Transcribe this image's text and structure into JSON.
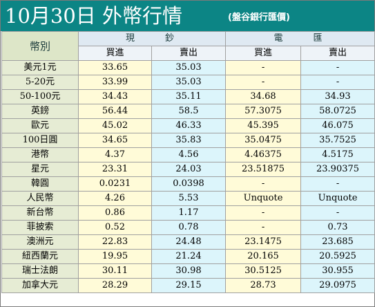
{
  "header": {
    "title": "10月30日 外幣行情",
    "subtitle": "(盤谷銀行匯價)"
  },
  "table": {
    "currency_header": "幣別",
    "groups": [
      {
        "label": "現　　鈔"
      },
      {
        "label": "電　　匯"
      }
    ],
    "buy_label": "買進",
    "sell_label": "賣出",
    "rows": [
      {
        "currency": "美元1元",
        "cash_buy": "33.65",
        "cash_sell": "35.03",
        "wire_buy": "-",
        "wire_sell": "-"
      },
      {
        "currency": "5-20元",
        "cash_buy": "33.99",
        "cash_sell": "35.03",
        "wire_buy": "-",
        "wire_sell": "-"
      },
      {
        "currency": "50-100元",
        "cash_buy": "34.43",
        "cash_sell": "35.11",
        "wire_buy": "34.68",
        "wire_sell": "34.93"
      },
      {
        "currency": "英鎊",
        "cash_buy": "56.44",
        "cash_sell": "58.5",
        "wire_buy": "57.3075",
        "wire_sell": "58.0725"
      },
      {
        "currency": "歐元",
        "cash_buy": "45.02",
        "cash_sell": "46.33",
        "wire_buy": "45.395",
        "wire_sell": "46.075"
      },
      {
        "currency": "100日圓",
        "cash_buy": "34.65",
        "cash_sell": "35.83",
        "wire_buy": "35.0475",
        "wire_sell": "35.7525"
      },
      {
        "currency": "港幣",
        "cash_buy": "4.37",
        "cash_sell": "4.56",
        "wire_buy": "4.46375",
        "wire_sell": "4.5175"
      },
      {
        "currency": "星元",
        "cash_buy": "23.31",
        "cash_sell": "24.03",
        "wire_buy": "23.51875",
        "wire_sell": "23.90375"
      },
      {
        "currency": "韓圓",
        "cash_buy": "0.0231",
        "cash_sell": "0.0398",
        "wire_buy": "-",
        "wire_sell": "-"
      },
      {
        "currency": "人民幣",
        "cash_buy": "4.26",
        "cash_sell": "5.53",
        "wire_buy": "Unquote",
        "wire_sell": "Unquote"
      },
      {
        "currency": "新台幣",
        "cash_buy": "0.86",
        "cash_sell": "1.17",
        "wire_buy": "-",
        "wire_sell": "-"
      },
      {
        "currency": "菲披索",
        "cash_buy": "0.52",
        "cash_sell": "0.78",
        "wire_buy": "-",
        "wire_sell": "0.73"
      },
      {
        "currency": "澳洲元",
        "cash_buy": "22.83",
        "cash_sell": "24.48",
        "wire_buy": "23.1475",
        "wire_sell": "23.685"
      },
      {
        "currency": "紐西蘭元",
        "cash_buy": "19.95",
        "cash_sell": "21.24",
        "wire_buy": "20.165",
        "wire_sell": "20.5925"
      },
      {
        "currency": "瑞士法朗",
        "cash_buy": "30.11",
        "cash_sell": "30.98",
        "wire_buy": "30.5125",
        "wire_sell": "30.955"
      },
      {
        "currency": "加拿大元",
        "cash_buy": "28.29",
        "cash_sell": "29.15",
        "wire_buy": "28.73",
        "wire_sell": "29.0975"
      }
    ]
  },
  "colors": {
    "banner": "#0c8585",
    "currency_column": "#dde6c8",
    "buy_cells": "#fffbd8",
    "sell_cells": "#dcf5fb"
  }
}
